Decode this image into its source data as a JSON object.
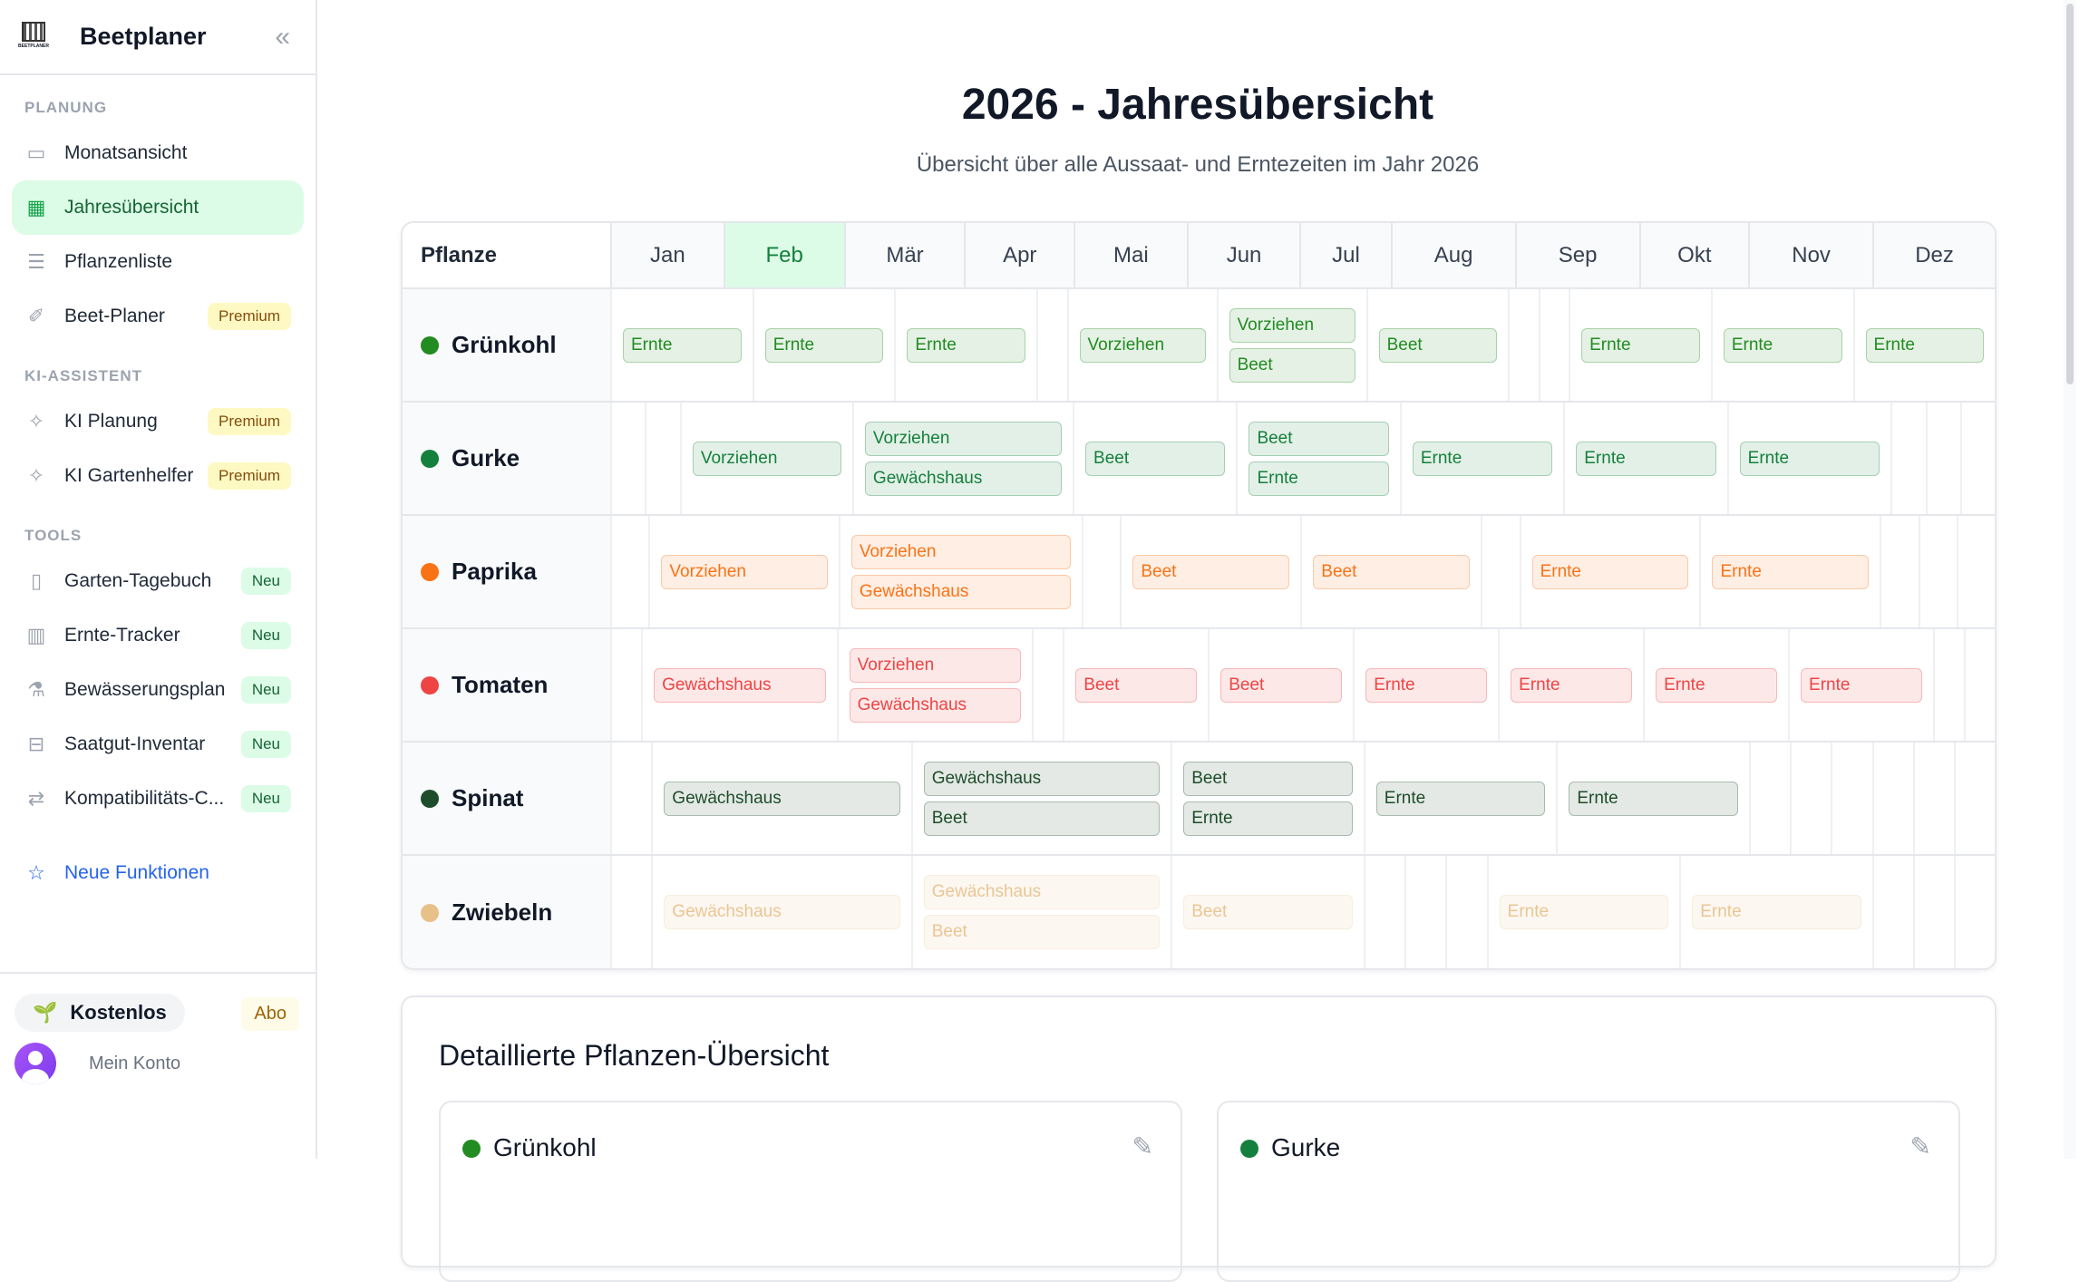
{
  "app": {
    "name": "Beetplaner",
    "logo_text": "BEETPLANER"
  },
  "sidebar": {
    "sections": [
      {
        "title": "PLANUNG",
        "items": [
          {
            "label": "Monatsansicht",
            "icon": "calendar-icon"
          },
          {
            "label": "Jahresübersicht",
            "icon": "calendar-grid-icon",
            "active": true
          },
          {
            "label": "Pflanzenliste",
            "icon": "list-icon"
          },
          {
            "label": "Beet-Planer",
            "icon": "brush-icon",
            "badge": "Premium"
          }
        ]
      },
      {
        "title": "KI-ASSISTENT",
        "items": [
          {
            "label": "KI Planung",
            "icon": "sparkles-icon",
            "badge": "Premium"
          },
          {
            "label": "KI Gartenhelfer",
            "icon": "sparkles-icon",
            "badge": "Premium"
          }
        ]
      },
      {
        "title": "TOOLS",
        "items": [
          {
            "label": "Garten-Tagebuch",
            "icon": "book-icon",
            "badge": "Neu"
          },
          {
            "label": "Ernte-Tracker",
            "icon": "bar-chart-icon",
            "badge": "Neu"
          },
          {
            "label": "Bewässerungsplan",
            "icon": "flask-icon",
            "badge": "Neu"
          },
          {
            "label": "Saatgut-Inventar",
            "icon": "archive-icon",
            "badge": "Neu"
          },
          {
            "label": "Kompatibilitäts-C...",
            "icon": "arrows-exchange-icon",
            "badge": "Neu"
          }
        ]
      }
    ],
    "new_features": "Neue Funktionen",
    "plan": "Kostenlos",
    "abo": "Abo",
    "account": "Mein Konto"
  },
  "page": {
    "title": "2026 - Jahresübersicht",
    "subtitle": "Übersicht über alle Aussaat- und Erntezeiten im Jahr 2026"
  },
  "table": {
    "plant_header": "Pflanze",
    "months": [
      "Jan",
      "Feb",
      "Mär",
      "Apr",
      "Mai",
      "Jun",
      "Jul",
      "Aug",
      "Sep",
      "Okt",
      "Nov",
      "Dez"
    ],
    "current_month": "Feb",
    "rows": [
      {
        "plant": "Grünkohl",
        "color": "#228b22",
        "faded": false,
        "cells": [
          [
            "Ernte"
          ],
          [
            "Ernte"
          ],
          [
            "Ernte"
          ],
          [],
          [
            "Vorziehen"
          ],
          [
            "Vorziehen",
            "Beet"
          ],
          [
            "Beet"
          ],
          [],
          [],
          [
            "Ernte"
          ],
          [
            "Ernte"
          ],
          [
            "Ernte"
          ]
        ]
      },
      {
        "plant": "Gurke",
        "color": "#15803d",
        "faded": false,
        "cells": [
          [],
          [],
          [
            "Vorziehen"
          ],
          [
            "Vorziehen",
            "Gewächshaus"
          ],
          [
            "Beet"
          ],
          [
            "Beet",
            "Ernte"
          ],
          [
            "Ernte"
          ],
          [
            "Ernte"
          ],
          [
            "Ernte"
          ],
          [],
          [],
          []
        ]
      },
      {
        "plant": "Paprika",
        "color": "#f97316",
        "faded": false,
        "cells": [
          [],
          [
            "Vorziehen"
          ],
          [
            "Vorziehen",
            "Gewächshaus"
          ],
          [],
          [
            "Beet"
          ],
          [
            "Beet"
          ],
          [],
          [
            "Ernte"
          ],
          [
            "Ernte"
          ],
          [],
          [],
          []
        ]
      },
      {
        "plant": "Tomaten",
        "color": "#ef4444",
        "faded": false,
        "cells": [
          [],
          [
            "Gewächshaus"
          ],
          [
            "Vorziehen",
            "Gewächshaus"
          ],
          [],
          [
            "Beet"
          ],
          [
            "Beet"
          ],
          [
            "Ernte"
          ],
          [
            "Ernte"
          ],
          [
            "Ernte"
          ],
          [
            "Ernte"
          ],
          [],
          []
        ]
      },
      {
        "plant": "Spinat",
        "color": "#1e4d2b",
        "faded": false,
        "cells": [
          [],
          [
            "Gewächshaus"
          ],
          [
            "Gewächshaus",
            "Beet"
          ],
          [
            "Beet",
            "Ernte"
          ],
          [
            "Ernte"
          ],
          [
            "Ernte"
          ],
          [],
          [],
          [],
          [],
          [],
          []
        ]
      },
      {
        "plant": "Zwiebeln",
        "color": "#e8c08a",
        "faded": true,
        "cells": [
          [],
          [
            "Gewächshaus"
          ],
          [
            "Gewächshaus",
            "Beet"
          ],
          [
            "Beet"
          ],
          [],
          [],
          [],
          [
            "Ernte"
          ],
          [
            "Ernte"
          ],
          [],
          [],
          []
        ]
      }
    ]
  },
  "details": {
    "title": "Detaillierte Pflanzen-Übersicht",
    "cards": [
      {
        "plant": "Grünkohl",
        "color": "#228b22"
      },
      {
        "plant": "Gurke",
        "color": "#15803d"
      }
    ]
  }
}
